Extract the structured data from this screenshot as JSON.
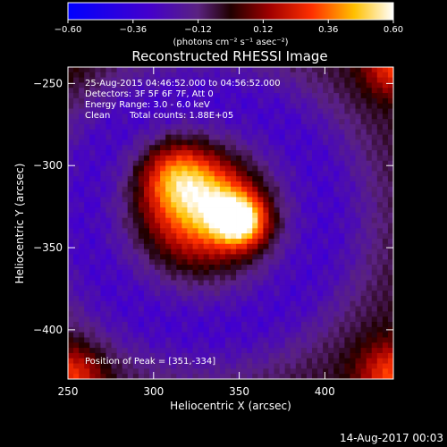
{
  "colorbar": {
    "ticks": [
      "−0.60",
      "−0.36",
      "−0.12",
      "0.12",
      "0.36",
      "0.60"
    ],
    "units": "(photons cm⁻² s⁻¹ asec⁻²)",
    "range": [
      -0.6,
      0.6
    ]
  },
  "info": {
    "time_range": "25-Aug-2015 04:46:52.000 to 04:56:52.000",
    "detectors": "Detectors: 3F 5F 6F 7F, Att 0",
    "energy_range": "Energy Range: 3.0 - 6.0 keV",
    "algorithm": "Clean",
    "total_counts": "Total counts: 1.88E+05",
    "peak_position": "Position of Peak = [351,-334]"
  },
  "footer": {
    "date": "14-Aug-2017 00:03"
  },
  "chart_data": {
    "type": "heatmap",
    "title": "Reconstructed RHESSI Image",
    "xlabel": "Heliocentric X (arcsec)",
    "ylabel": "Heliocentric Y (arcsec)",
    "xlim": [
      250,
      440
    ],
    "ylim": [
      -430,
      -240
    ],
    "xticks": [
      250,
      300,
      350,
      400
    ],
    "yticks": [
      -250,
      -300,
      -350,
      -400
    ],
    "xtick_labels": [
      "250",
      "300",
      "350",
      "400"
    ],
    "ytick_labels": [
      "−250",
      "−300",
      "−350",
      "−400"
    ],
    "peak": [
      351,
      -334
    ],
    "sources": [
      {
        "x": 351,
        "y": -334,
        "amplitude": 0.62,
        "sigma": 11
      },
      {
        "x": 313,
        "y": -305,
        "amplitude": 0.36,
        "sigma": 15
      },
      {
        "x": 322,
        "y": -325,
        "amplitude": 0.3,
        "sigma": 20
      },
      {
        "x": 340,
        "y": -318,
        "amplitude": 0.18,
        "sigma": 14
      },
      {
        "x": 330,
        "y": -338,
        "amplitude": 0.14,
        "sigma": 18
      }
    ],
    "ring": {
      "cx": 330,
      "cy": -330,
      "radius": 70,
      "width": 22,
      "amplitude": -0.3
    },
    "corner_sources": [
      {
        "x": 252,
        "y": -428,
        "amplitude": 0.32,
        "sigma": 13
      },
      {
        "x": 440,
        "y": -428,
        "amplitude": 0.35,
        "sigma": 14
      },
      {
        "x": 440,
        "y": -240,
        "amplitude": 0.32,
        "sigma": 12
      },
      {
        "x": 252,
        "y": -240,
        "amplitude": 0.05,
        "sigma": 12
      }
    ]
  }
}
